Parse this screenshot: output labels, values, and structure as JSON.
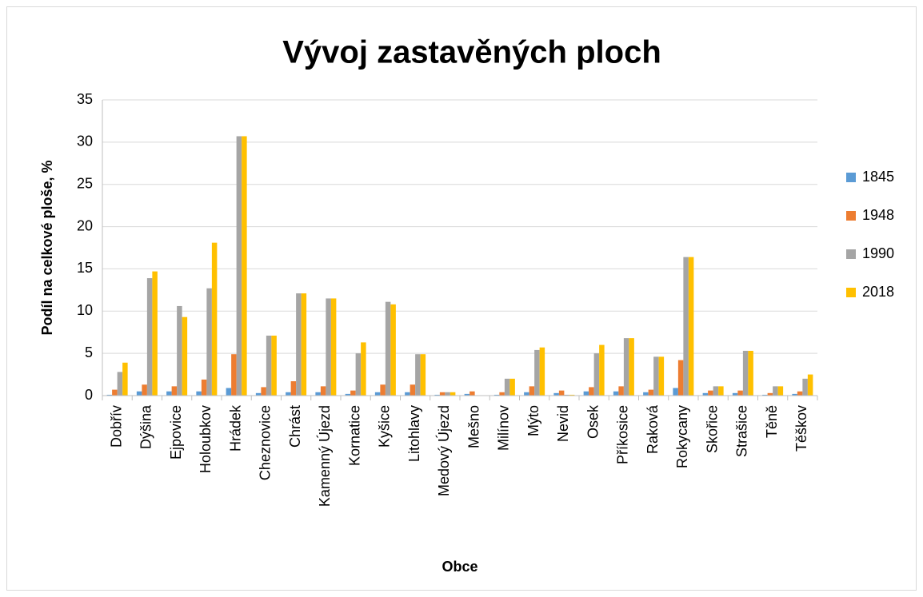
{
  "chart_data": {
    "type": "bar",
    "title": "Vývoj zastavěných ploch",
    "x_label": "Obce",
    "y_label": "Podíl na celkové ploše, %",
    "categories": [
      "Dobřív",
      "Dýšina",
      "Ejpovice",
      "Holoubkov",
      "Hrádek",
      "Cheznovice",
      "Chrást",
      "Kamenný Újezd",
      "Kornatice",
      "Kyšice",
      "Litohlavy",
      "Medový Újezd",
      "Mešno",
      "Milínov",
      "Mýto",
      "Nevid",
      "Osek",
      "Příkosice",
      "Raková",
      "Rokycany",
      "Skořice",
      "Strašice",
      "Těně",
      "Těškov"
    ],
    "series": [
      {
        "name": "1845",
        "color": "#5b9bd5",
        "values": [
          0.1,
          0.5,
          0.5,
          0.5,
          0.9,
          0.3,
          0.4,
          0.4,
          0.2,
          0.4,
          0.4,
          0.1,
          0.2,
          0.1,
          0.4,
          0.3,
          0.5,
          0.5,
          0.4,
          0.9,
          0.3,
          0.3,
          0.1,
          0.2
        ]
      },
      {
        "name": "1948",
        "color": "#ed7d31",
        "values": [
          0.7,
          1.3,
          1.1,
          1.9,
          4.9,
          1.0,
          1.7,
          1.1,
          0.6,
          1.3,
          1.3,
          0.4,
          0.5,
          0.4,
          1.1,
          0.6,
          1.0,
          1.1,
          0.7,
          4.2,
          0.6,
          0.6,
          0.3,
          0.5
        ]
      },
      {
        "name": "1990",
        "color": "#a5a5a5",
        "values": [
          2.8,
          13.9,
          10.6,
          12.7,
          30.7,
          7.1,
          12.1,
          11.5,
          5.0,
          11.1,
          4.9,
          0.4,
          0,
          2.0,
          5.4,
          0.1,
          5.0,
          6.8,
          4.6,
          16.4,
          1.1,
          5.3,
          1.1,
          2.0
        ]
      },
      {
        "name": "2018",
        "color": "#ffc000",
        "values": [
          3.9,
          14.7,
          9.3,
          18.1,
          30.7,
          7.1,
          12.1,
          11.5,
          6.3,
          10.8,
          4.9,
          0.4,
          0,
          2.0,
          5.7,
          0.1,
          6.0,
          6.8,
          4.6,
          16.4,
          1.1,
          5.3,
          1.1,
          2.5
        ]
      }
    ],
    "ylim": [
      0,
      35
    ],
    "yticks": [
      0,
      5,
      10,
      15,
      20,
      25,
      30,
      35
    ],
    "grid": true,
    "legend": "right"
  }
}
